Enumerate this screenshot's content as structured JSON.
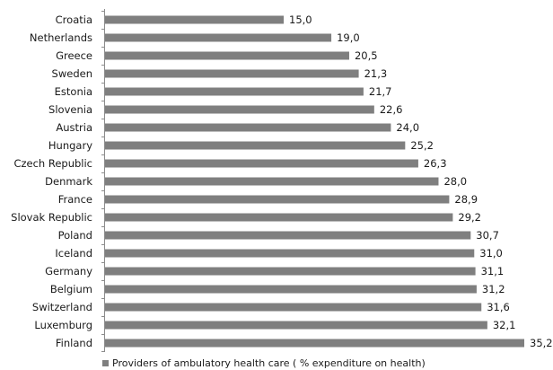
{
  "chart_data": {
    "type": "bar",
    "orientation": "horizontal",
    "categories": [
      "Croatia",
      "Netherlands",
      "Greece",
      "Sweden",
      "Estonia",
      "Slovenia",
      "Austria",
      "Hungary",
      "Czech Republic",
      "Denmark",
      "France",
      "Slovak Republic",
      "Poland",
      "Iceland",
      "Germany",
      "Belgium",
      "Switzerland",
      "Luxemburg",
      "Finland"
    ],
    "values": [
      15.0,
      19.0,
      20.5,
      21.3,
      21.7,
      22.6,
      24.0,
      25.2,
      26.3,
      28.0,
      28.9,
      29.2,
      30.7,
      31.0,
      31.1,
      31.2,
      31.6,
      32.1,
      35.2
    ],
    "value_labels": [
      "15,0",
      "19,0",
      "20,5",
      "21,3",
      "21,7",
      "22,6",
      "24,0",
      "25,2",
      "26,3",
      "28,0",
      "28,9",
      "29,2",
      "30,7",
      "31,0",
      "31,1",
      "31,2",
      "31,6",
      "32,1",
      "35,2"
    ],
    "series": [
      {
        "name": "Providers of ambulatory health care ( % expenditure on health)"
      }
    ],
    "bar_color": "#7f7f7f",
    "xlim": [
      0,
      35.2
    ],
    "legend_position": "bottom",
    "grid": false,
    "title": "",
    "xlabel": "",
    "ylabel": ""
  }
}
